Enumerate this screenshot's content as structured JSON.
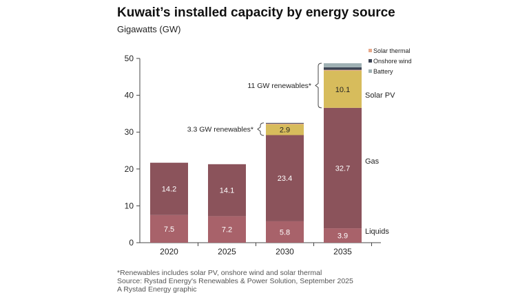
{
  "chart_data": {
    "type": "bar",
    "stacked": true,
    "title": "Kuwait’s installed capacity by energy source",
    "subtitle": "Gigawatts (GW)",
    "categories": [
      "2020",
      "2025",
      "2030",
      "2035"
    ],
    "ylim": [
      0,
      50
    ],
    "yticks": [
      0,
      10,
      20,
      30,
      40,
      50
    ],
    "series": [
      {
        "name": "Liquids",
        "values": [
          7.5,
          7.2,
          5.8,
          3.9
        ],
        "color": "#a8626a",
        "labels": [
          "7.5",
          "7.2",
          "5.8",
          "3.9"
        ]
      },
      {
        "name": "Gas",
        "values": [
          14.2,
          14.1,
          23.4,
          32.7
        ],
        "color": "#8b535b",
        "labels": [
          "14.2",
          "14.1",
          "23.4",
          "32.7"
        ]
      },
      {
        "name": "Solar PV",
        "values": [
          0,
          0,
          2.9,
          10.1
        ],
        "color": "#d7bc5c",
        "labels": [
          "",
          "",
          "2.9",
          "10.1"
        ]
      },
      {
        "name": "Solar thermal",
        "values": [
          0,
          0,
          0.2,
          0.2
        ],
        "color": "#e8a88a"
      },
      {
        "name": "Onshore wind",
        "values": [
          0,
          0,
          0.2,
          0.7
        ],
        "color": "#3d4554"
      },
      {
        "name": "Battery",
        "values": [
          0,
          0,
          0,
          1.1
        ],
        "color": "#9fb1b3"
      }
    ],
    "annotations": [
      "3.3 GW renewables*",
      "11 GW renewables*"
    ],
    "legend": "top-right"
  },
  "footnotes": [
    "*Renewables includes solar PV, onshore wind and solar thermal",
    "Source: Rystad Energy's Renewables & Power Solution, September 2025",
    "A Rystad Energy graphic"
  ]
}
